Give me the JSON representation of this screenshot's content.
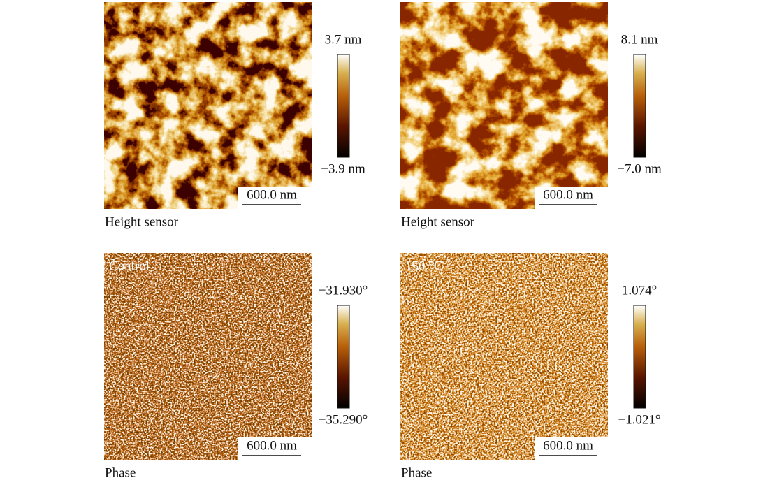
{
  "panels": [
    {
      "colorbar_max": "3.7 nm",
      "colorbar_min": "−3.9 nm",
      "scale_bar": "600.0 nm",
      "caption": "Height sensor"
    },
    {
      "colorbar_max": "8.1 nm",
      "colorbar_min": "−7.0 nm",
      "scale_bar": "600.0 nm",
      "caption": "Height sensor"
    },
    {
      "overlay_label": "Control",
      "colorbar_max": "−31.930°",
      "colorbar_min": "−35.290°",
      "scale_bar": "600.0 nm",
      "caption": "Phase"
    },
    {
      "overlay_label": "150 °C",
      "colorbar_max": "1.074°",
      "colorbar_min": "−1.021°",
      "scale_bar": "600.0 nm",
      "caption": "Phase"
    }
  ]
}
